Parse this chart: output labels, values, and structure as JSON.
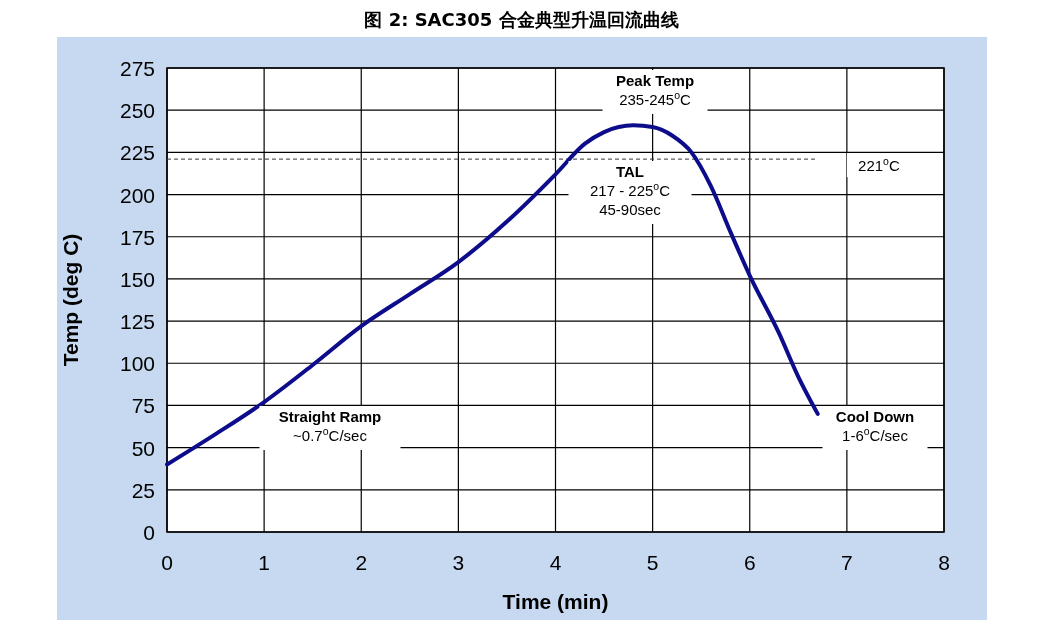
{
  "chart_data": {
    "type": "line",
    "title": "图 2: SAC305 合金典型升温回流曲线",
    "xlabel": "Time (min)",
    "ylabel": "Temp (deg C)",
    "x": [
      0,
      0.5,
      1,
      1.5,
      2,
      2.5,
      3,
      3.5,
      4,
      4.3,
      4.5,
      4.8,
      5.0,
      5.2,
      5.4,
      5.6,
      5.8,
      6.0,
      6.3,
      6.5,
      6.7
    ],
    "series": [
      {
        "color": "#0d0d8c",
        "values": [
          40,
          58,
          77,
          99,
          122,
          141,
          160,
          184,
          212,
          230,
          237,
          241,
          240,
          235,
          225,
          205,
          178,
          152,
          118,
          92,
          70
        ]
      }
    ],
    "xlim": [
      0,
      8
    ],
    "xticks": [
      0,
      1,
      2,
      3,
      4,
      5,
      6,
      7,
      8
    ],
    "ylim": [
      0,
      275
    ],
    "yticks": [
      0,
      25,
      50,
      75,
      100,
      125,
      150,
      175,
      200,
      225,
      250,
      275
    ],
    "grid": true,
    "marker": "none",
    "line_style": "solid",
    "ref_lines": [
      {
        "axis": "y",
        "value": 221,
        "label": "221$^{o}$C",
        "line_style": "dashed",
        "color": "#333333"
      }
    ],
    "annotations": [
      "Peak Temp\n235-245$^{o}$C",
      "TAL\n217 - 225$^{o}$C\n45-90sec",
      "Straight Ramp\n~0.7$^{o}$C/sec",
      "Cool Down\n1-6$^{o}$C/sec"
    ]
  }
}
